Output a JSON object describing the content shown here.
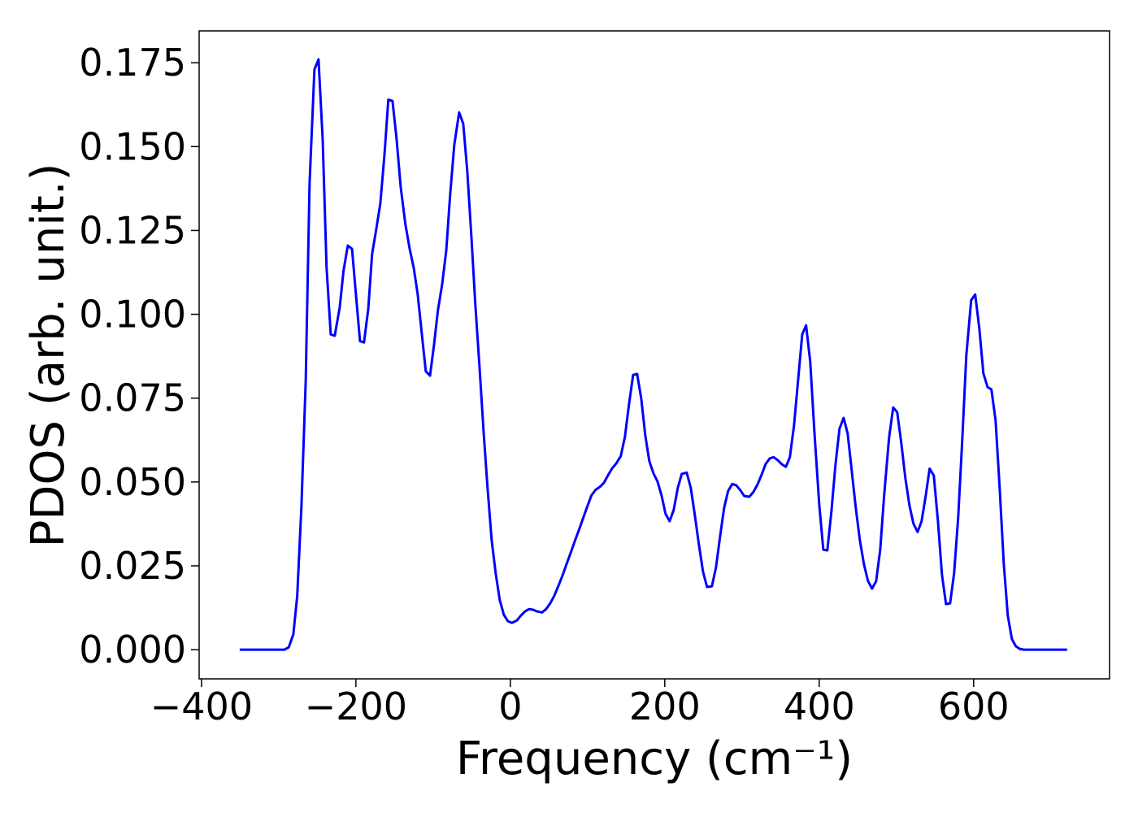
{
  "chart_data": {
    "type": "line",
    "x_label": "Frequency (cm⁻¹)",
    "y_label": "PDOS (arb. unit.)",
    "xlim": [
      -403,
      776
    ],
    "ylim": [
      -0.0087,
      0.1845
    ],
    "xticks": [
      {
        "value": -400,
        "label": "−400"
      },
      {
        "value": -200,
        "label": "−200"
      },
      0,
      200,
      400,
      600
    ],
    "yticks": [
      {
        "value": 0,
        "label": "0.000"
      },
      {
        "value": 0.025,
        "label": "0.025"
      },
      {
        "value": 0.05,
        "label": "0.050"
      },
      {
        "value": 0.075,
        "label": "0.075"
      },
      {
        "value": 0.1,
        "label": "0.100"
      },
      {
        "value": 0.125,
        "label": "0.125"
      },
      {
        "value": 0.15,
        "label": "0.150"
      },
      {
        "value": 0.175,
        "label": "0.175"
      }
    ],
    "grid": false,
    "series": [
      {
        "color": "#0000ff",
        "x": [
          -350.5,
          -292.6,
          -287,
          -281,
          -276,
          -270.5,
          -265,
          -260,
          -253.7,
          -248.4,
          -243,
          -238,
          -232.6,
          -227.4,
          -221,
          -216,
          -210.5,
          -205,
          -200,
          -194.7,
          -189.5,
          -184,
          -179,
          -173.7,
          -168.4,
          -163,
          -158,
          -152.6,
          -147.4,
          -142,
          -136,
          -130.5,
          -125,
          -120,
          -114.7,
          -109.5,
          -104,
          -99,
          -93.7,
          -88.4,
          -83,
          -78,
          -72.6,
          -66.3,
          -61,
          -55.8,
          -50.5,
          -45.3,
          -40,
          -34.7,
          -29.5,
          -24.2,
          -19,
          -13.7,
          -8.4,
          -3.2,
          2.1,
          8.4,
          13.7,
          19,
          24.2,
          29.5,
          34.7,
          41,
          46.3,
          51.6,
          56.8,
          62,
          67.4,
          72.6,
          78,
          84,
          89.5,
          94.7,
          100,
          105,
          110.5,
          115.8,
          121,
          126.3,
          131.6,
          137,
          143,
          148.4,
          153.7,
          159,
          164.2,
          169.5,
          174.7,
          180,
          185.3,
          190.5,
          195.8,
          201,
          206.3,
          211.6,
          216.8,
          222,
          228.4,
          233.7,
          239,
          244.2,
          249.5,
          254.7,
          261,
          266.3,
          271.6,
          276.8,
          282,
          287.4,
          292.6,
          298,
          303,
          309.5,
          314.7,
          320,
          325.3,
          330.5,
          335.8,
          341,
          346.3,
          351.6,
          356.8,
          362,
          367.4,
          372.6,
          378,
          383,
          388.4,
          393.7,
          400,
          405.3,
          410.5,
          415.8,
          421,
          426.3,
          431.6,
          436.8,
          442,
          447.4,
          452.6,
          458,
          463,
          468.4,
          473.7,
          479,
          484.2,
          490.5,
          495.8,
          501,
          506.3,
          511.6,
          516.8,
          522,
          527.4,
          532.6,
          538,
          543,
          548.4,
          553.7,
          559,
          564.2,
          569.5,
          574.7,
          580,
          585.3,
          590.5,
          596.8,
          602,
          607.4,
          612.6,
          618,
          623,
          628.4,
          633.7,
          639,
          644.2,
          649.5,
          654.7,
          660,
          665.3,
          721
        ],
        "values": [
          0,
          0,
          0.0007,
          0.0046,
          0.016,
          0.043,
          0.08,
          0.139,
          0.173,
          0.176,
          0.152,
          0.114,
          0.094,
          0.0936,
          0.102,
          0.113,
          0.1205,
          0.1195,
          0.106,
          0.092,
          0.0916,
          0.1016,
          0.118,
          0.1253,
          0.133,
          0.1476,
          0.164,
          0.1636,
          0.1525,
          0.138,
          0.127,
          0.1197,
          0.1137,
          0.106,
          0.0943,
          0.083,
          0.0817,
          0.0906,
          0.1013,
          0.1088,
          0.119,
          0.1355,
          0.1505,
          0.1602,
          0.1568,
          0.1428,
          0.1234,
          0.1028,
          0.0846,
          0.0652,
          0.0482,
          0.0327,
          0.0228,
          0.0148,
          0.0104,
          0.0085,
          0.008,
          0.0087,
          0.0102,
          0.0114,
          0.0121,
          0.0119,
          0.0114,
          0.0111,
          0.0121,
          0.0138,
          0.016,
          0.0189,
          0.022,
          0.0254,
          0.0288,
          0.0327,
          0.0361,
          0.0395,
          0.0429,
          0.046,
          0.0477,
          0.0485,
          0.0497,
          0.0519,
          0.054,
          0.0555,
          0.0577,
          0.0635,
          0.0732,
          0.0819,
          0.0822,
          0.0749,
          0.064,
          0.0562,
          0.0526,
          0.0502,
          0.046,
          0.0405,
          0.0383,
          0.0417,
          0.0482,
          0.0524,
          0.0528,
          0.0482,
          0.04,
          0.0313,
          0.0233,
          0.0187,
          0.0189,
          0.0245,
          0.0337,
          0.0422,
          0.0473,
          0.0494,
          0.049,
          0.0475,
          0.0458,
          0.0456,
          0.047,
          0.0492,
          0.0521,
          0.0553,
          0.057,
          0.0574,
          0.0565,
          0.0553,
          0.0545,
          0.0574,
          0.0669,
          0.0802,
          0.094,
          0.0967,
          0.0858,
          0.0652,
          0.0434,
          0.0298,
          0.0296,
          0.0412,
          0.055,
          0.0659,
          0.0691,
          0.0645,
          0.0536,
          0.0422,
          0.0327,
          0.0254,
          0.0206,
          0.0182,
          0.0204,
          0.0298,
          0.0463,
          0.0633,
          0.0722,
          0.0708,
          0.0616,
          0.0511,
          0.0431,
          0.0376,
          0.0351,
          0.0383,
          0.046,
          0.054,
          0.0519,
          0.0385,
          0.0223,
          0.0136,
          0.0138,
          0.0228,
          0.0395,
          0.0628,
          0.0877,
          0.1042,
          0.1059,
          0.0957,
          0.0824,
          0.0783,
          0.0776,
          0.0684,
          0.0482,
          0.0257,
          0.0102,
          0.0032,
          0.001,
          0.0002,
          0,
          0
        ]
      }
    ]
  }
}
